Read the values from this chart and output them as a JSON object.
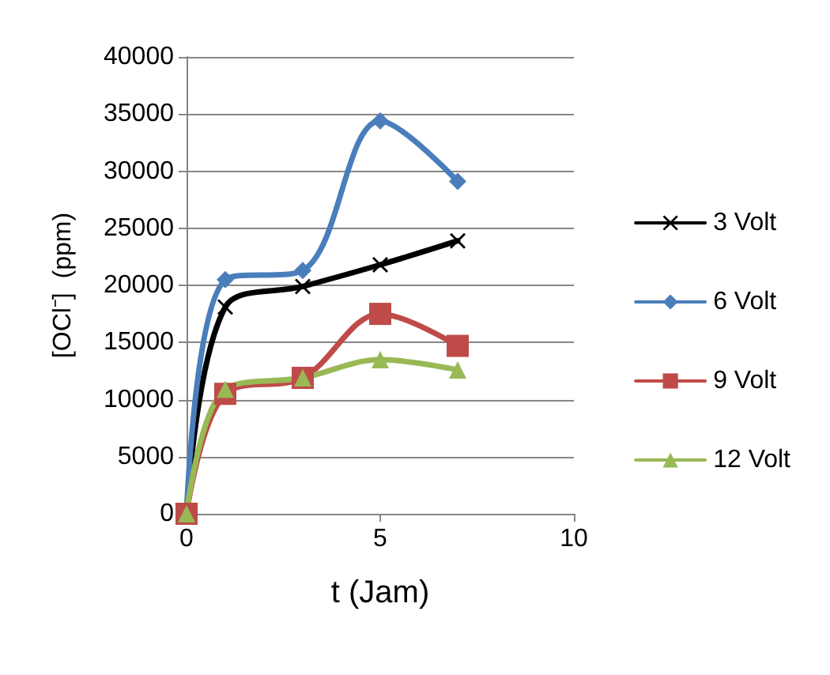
{
  "chart_data": {
    "type": "line",
    "xlabel": "t (Jam)",
    "ylabel": "[OCl⁻]  (ppm)",
    "x": [
      0,
      1,
      3,
      5,
      7
    ],
    "xlim": [
      0,
      10
    ],
    "xticks": [
      0,
      5,
      10
    ],
    "ylim": [
      0,
      40000
    ],
    "yticks": [
      0,
      5000,
      10000,
      15000,
      20000,
      25000,
      30000,
      35000,
      40000
    ],
    "grid": "y",
    "legend": "right",
    "line_style": "solid",
    "series": [
      {
        "name": "3 Volt",
        "color": "#000000",
        "marker": "cross",
        "values": [
          0,
          18100,
          19900,
          21800,
          23900
        ]
      },
      {
        "name": "6 Volt",
        "color": "#4a7ebb",
        "marker": "diamond",
        "values": [
          0,
          20500,
          21300,
          34400,
          29100
        ]
      },
      {
        "name": "9 Volt",
        "color": "#be4b48",
        "marker": "square",
        "values": [
          0,
          10500,
          11900,
          17500,
          14700
        ]
      },
      {
        "name": "12 Volt",
        "color": "#98b954",
        "marker": "triangle",
        "values": [
          0,
          10900,
          11900,
          13500,
          12600
        ]
      }
    ]
  }
}
